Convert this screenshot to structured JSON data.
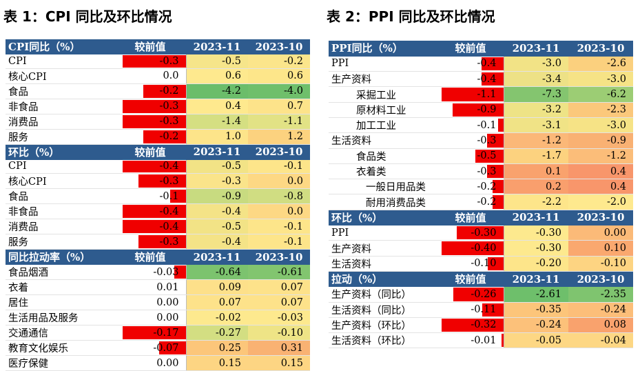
{
  "left_title": "表 1：CPI 同比及环比情况",
  "right_title": "表 2：PPI 同比及环比情况",
  "left_sections": [
    {
      "header": [
        "CPI同比（%）",
        "较前值",
        "2023-11",
        "2023-10"
      ],
      "rows": [
        {
          "label": "CPI",
          "chg": "-0.3",
          "v1": "-0.5",
          "v2": "-0.2",
          "bar": 1.0,
          "c1": "#f6e58a",
          "c2": "#fbe58b"
        },
        {
          "label": "核心CPI",
          "chg": "0.0",
          "v1": "0.6",
          "v2": "0.6",
          "bar": 0,
          "c1": "#fee98e",
          "c2": "#fde68a"
        },
        {
          "label": "食品",
          "chg": "-0.2",
          "v1": "-4.2",
          "v2": "-4.0",
          "bar": 0.67,
          "c1": "#6bbd6a",
          "c2": "#6fbf6b"
        },
        {
          "label": "非食品",
          "chg": "-0.3",
          "v1": "0.4",
          "v2": "0.7",
          "bar": 1.0,
          "c1": "#fee98e",
          "c2": "#fde38a"
        },
        {
          "label": "消费品",
          "chg": "-0.3",
          "v1": "-1.4",
          "v2": "-1.1",
          "bar": 1.0,
          "c1": "#d5df82",
          "c2": "#e2e285"
        },
        {
          "label": "服务",
          "chg": "-0.2",
          "v1": "1.0",
          "v2": "1.2",
          "bar": 0.67,
          "c1": "#fde48a",
          "c2": "#fcd27f"
        }
      ]
    },
    {
      "header": [
        "环比（%）",
        "较前值",
        "2023-11",
        "2023-10"
      ],
      "rows": [
        {
          "label": "CPI",
          "chg": "-0.4",
          "v1": "-0.5",
          "v2": "-0.1",
          "bar": 1.0,
          "c1": "#f2e386",
          "c2": "#fde58a"
        },
        {
          "label": "核心CPI",
          "chg": "-0.3",
          "v1": "-0.3",
          "v2": "0.0",
          "bar": 0.75,
          "c1": "#fae48a",
          "c2": "#fdd884"
        },
        {
          "label": "食品",
          "chg": "-0.1",
          "v1": "-0.9",
          "v2": "-0.8",
          "bar": 0.25,
          "c1": "#c8db80",
          "c2": "#d0dd82"
        },
        {
          "label": "非食品",
          "chg": "-0.4",
          "v1": "-0.4",
          "v2": "0.0",
          "bar": 1.0,
          "c1": "#f4e387",
          "c2": "#fdd884"
        },
        {
          "label": "消费品",
          "chg": "-0.4",
          "v1": "-0.5",
          "v2": "-0.1",
          "bar": 1.0,
          "c1": "#f2e386",
          "c2": "#fde58a"
        },
        {
          "label": "服务",
          "chg": "-0.3",
          "v1": "-0.4",
          "v2": "-0.1",
          "bar": 0.75,
          "c1": "#f4e387",
          "c2": "#fde58a"
        }
      ]
    },
    {
      "header": [
        "同比拉动率（%）",
        "较前值",
        "2023-11",
        "2023-10"
      ],
      "rows": [
        {
          "label": "食品烟酒",
          "chg": "-0.03",
          "v1": "-0.64",
          "v2": "-0.61",
          "bar": 0.18,
          "c1": "#7cc36e",
          "c2": "#82c56f"
        },
        {
          "label": "衣着",
          "chg": "0.01",
          "v1": "0.09",
          "v2": "0.07",
          "bar": 0,
          "c1": "#fde08a",
          "c2": "#fde28a"
        },
        {
          "label": "居住",
          "chg": "0.00",
          "v1": "0.07",
          "v2": "0.07",
          "bar": 0,
          "c1": "#fde28a",
          "c2": "#fde28a"
        },
        {
          "label": "生活用品及服务",
          "chg": "0.00",
          "v1": "-0.02",
          "v2": "-0.03",
          "bar": 0,
          "c1": "#fde98e",
          "c2": "#fde98e"
        },
        {
          "label": "交通通信",
          "chg": "-0.17",
          "v1": "-0.27",
          "v2": "-0.10",
          "bar": 1.0,
          "c1": "#d3de82",
          "c2": "#eee486"
        },
        {
          "label": "教育文化娱乐",
          "chg": "-0.07",
          "v1": "0.25",
          "v2": "0.31",
          "bar": 0.42,
          "c1": "#fcc67a",
          "c2": "#f9b273"
        },
        {
          "label": "医疗保健",
          "chg": "0.00",
          "v1": "0.15",
          "v2": "0.15",
          "bar": 0,
          "c1": "#fdd583",
          "c2": "#fdd583"
        }
      ]
    }
  ],
  "right_sections": [
    {
      "header": [
        "PPI同比（%）",
        "较前值",
        "2023-11",
        "2023-10"
      ],
      "rows": [
        {
          "label": "PPI",
          "indent": 0,
          "chg": "-0.4",
          "v1": "-3.0",
          "v2": "-2.6",
          "bar": 0.36,
          "c1": "#f2e386",
          "c2": "#fbd07e"
        },
        {
          "label": "生产资料",
          "indent": 0,
          "chg": "-0.4",
          "v1": "-3.4",
          "v2": "-3.0",
          "bar": 0.36,
          "c1": "#ede186",
          "c2": "#f6e386"
        },
        {
          "label": "采掘工业",
          "indent": 1,
          "chg": "-1.1",
          "v1": "-7.3",
          "v2": "-6.2",
          "bar": 1.0,
          "c1": "#84c56f",
          "c2": "#9ccd74"
        },
        {
          "label": "原材料工业",
          "indent": 1,
          "chg": "-0.9",
          "v1": "-3.2",
          "v2": "-2.3",
          "bar": 0.82,
          "c1": "#eee386",
          "c2": "#fbc87b"
        },
        {
          "label": "加工工业",
          "indent": 1,
          "chg": "-0.1",
          "v1": "-3.1",
          "v2": "-3.0",
          "bar": 0.09,
          "c1": "#f0e386",
          "c2": "#f6e386"
        },
        {
          "label": "生活资料",
          "indent": 0,
          "chg": "-0.3",
          "v1": "-1.2",
          "v2": "-0.9",
          "bar": 0.27,
          "c1": "#fbb878",
          "c2": "#f9b173"
        },
        {
          "label": "食品类",
          "indent": 1,
          "chg": "-0.5",
          "v1": "-1.7",
          "v2": "-1.2",
          "bar": 0.45,
          "c1": "#fcd27f",
          "c2": "#fbbd79"
        },
        {
          "label": "衣着类",
          "indent": 1,
          "chg": "-0.3",
          "v1": "0.1",
          "v2": "0.4",
          "bar": 0.27,
          "c1": "#f9a26d",
          "c2": "#f8966b"
        },
        {
          "label": "一般日用品类",
          "indent": 2,
          "chg": "-0.2",
          "v1": "0.2",
          "v2": "0.4",
          "bar": 0.18,
          "c1": "#f99f6d",
          "c2": "#f8966b"
        },
        {
          "label": "耐用消费品类",
          "indent": 2,
          "chg": "-0.2",
          "v1": "-2.2",
          "v2": "-2.0",
          "bar": 0.18,
          "c1": "#fde58a",
          "c2": "#fee98e"
        }
      ]
    },
    {
      "header": [
        "环比（%）",
        "较前值",
        "2023-11",
        "2023-10"
      ],
      "rows": [
        {
          "label": "PPI",
          "indent": 0,
          "chg": "-0.30",
          "v1": "-0.30",
          "v2": "0.00",
          "bar": 0.75,
          "c1": "#fde98e",
          "c2": "#fbba78"
        },
        {
          "label": "生产资料",
          "indent": 0,
          "chg": "-0.40",
          "v1": "-0.30",
          "v2": "0.10",
          "bar": 1.0,
          "c1": "#fde98e",
          "c2": "#faa86f"
        },
        {
          "label": "生活资料",
          "indent": 0,
          "chg": "-0.10",
          "v1": "-0.20",
          "v2": "-0.10",
          "bar": 0.25,
          "c1": "#fde58a",
          "c2": "#fdd482"
        }
      ]
    },
    {
      "header": [
        "拉动（%）",
        "较前值",
        "2023-11",
        "2023-10"
      ],
      "rows": [
        {
          "label": "生产资料（同比）",
          "indent": 0,
          "chg": "-0.26",
          "v1": "-2.61",
          "v2": "-2.35",
          "bar": 0.81,
          "c1": "#6ebf6b",
          "c2": "#7fc46f"
        },
        {
          "label": "生活资料（同比）",
          "indent": 0,
          "chg": "-0.11",
          "v1": "-0.35",
          "v2": "-0.24",
          "bar": 0.34,
          "c1": "#fcc57a",
          "c2": "#fcbe79"
        },
        {
          "label": "生产资料（环比）",
          "indent": 0,
          "chg": "-0.32",
          "v1": "-0.24",
          "v2": "0.08",
          "bar": 1.0,
          "c1": "#fcc17a",
          "c2": "#f9a26d"
        },
        {
          "label": "生活资料（环比）",
          "indent": 0,
          "chg": "-0.01",
          "v1": "-0.05",
          "v2": "-0.04",
          "bar": 0.03,
          "c1": "#fdd784",
          "c2": "#fdd784"
        }
      ]
    }
  ]
}
